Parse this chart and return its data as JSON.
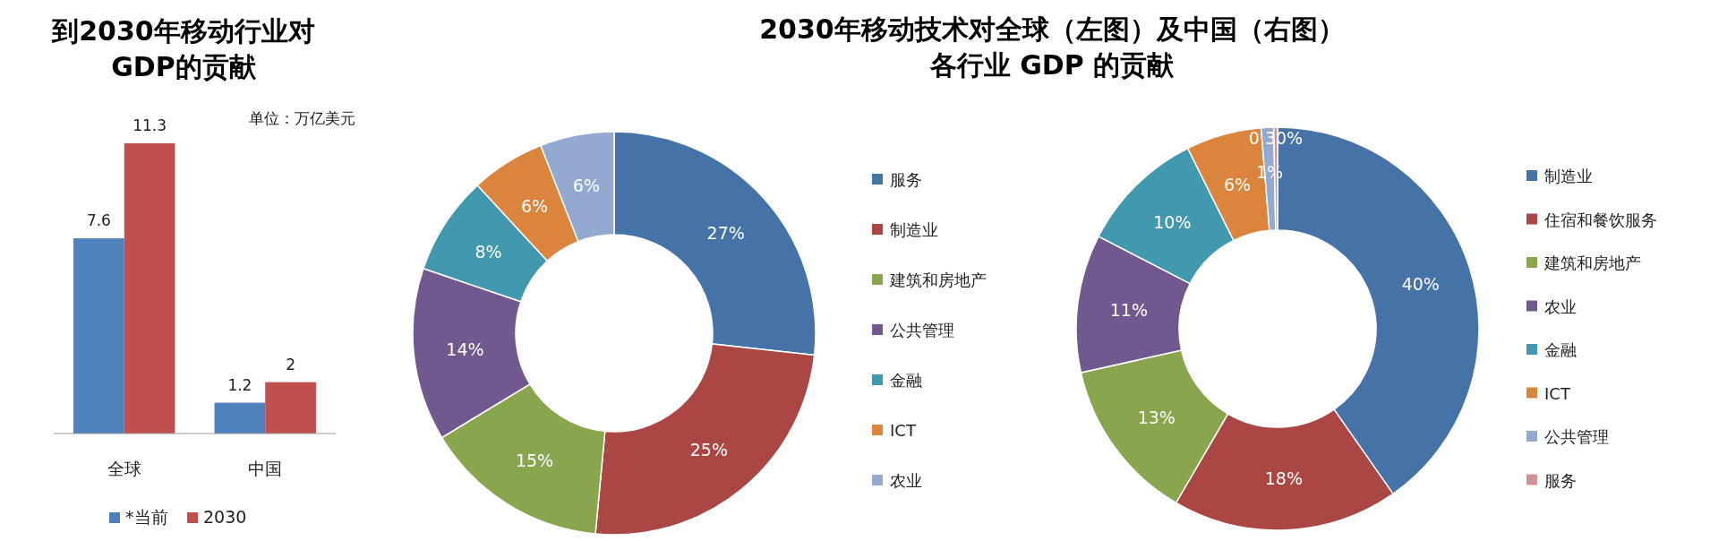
{
  "chart_data": [
    {
      "type": "bar",
      "title": "到2030年移动行业对",
      "subtitle": "GDP的贡献",
      "categories": [
        "全球",
        "中国"
      ],
      "series": [
        {
          "name": "*当前",
          "color": "#4f81bd",
          "values": [
            7.6,
            1.2
          ]
        },
        {
          "name": "2030",
          "color": "#c0504d",
          "values": [
            11.3,
            2
          ]
        }
      ],
      "data_labels": true,
      "legend": "bottom",
      "annotations": [
        "单位：万亿美元"
      ]
    },
    {
      "type": "donut",
      "title": "2030年移动技术对全球（左图）及中国（右图）",
      "subtitle": "各行业 GDP 的贡献",
      "categories": [
        "服务",
        "制造业",
        "建筑和房地产",
        "公共管理",
        "金融",
        "ICT",
        "农业"
      ],
      "values": [
        27,
        25,
        15,
        14,
        8,
        6,
        6
      ],
      "value_labels": [
        "27%",
        "25%",
        "15%",
        "14%",
        "8%",
        "6%",
        "6%"
      ],
      "colors": [
        "#4572a7",
        "#aa4643",
        "#89a54e",
        "#71588f",
        "#4198af",
        "#db843d",
        "#93a9cf"
      ],
      "legend": "right"
    },
    {
      "type": "donut",
      "categories": [
        "制造业",
        "住宿和餐饮服务",
        "建筑和房地产",
        "农业",
        "金融",
        "ICT",
        "公共管理",
        "服务"
      ],
      "values": [
        40,
        18,
        13,
        11,
        10,
        6,
        1,
        0.3
      ],
      "value_labels": [
        "40%",
        "18%",
        "13%",
        "11%",
        "10%",
        "6%",
        "1%",
        "0.30%"
      ],
      "colors": [
        "#4572a7",
        "#aa4643",
        "#89a54e",
        "#71588f",
        "#4198af",
        "#db843d",
        "#93a9cf",
        "#d19392"
      ],
      "legend": "right"
    }
  ]
}
